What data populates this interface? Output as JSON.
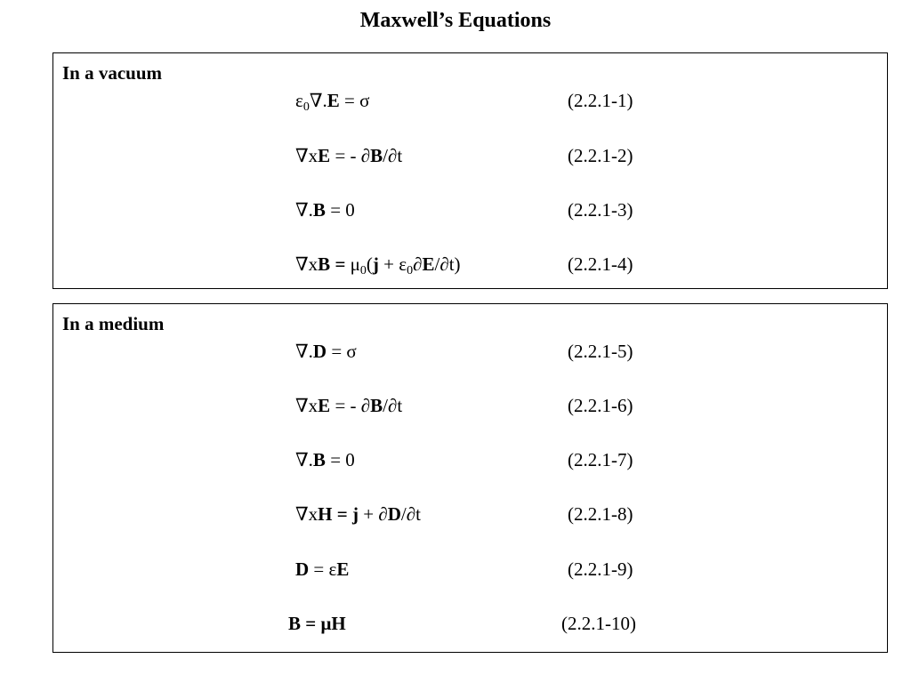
{
  "title": "Maxwell’s Equations",
  "sections": [
    {
      "heading": "In a vacuum",
      "equations": [
        {
          "parts": [
            "ε",
            "0",
            "∇.",
            "E",
            " = σ"
          ],
          "number": "(2.2.1-1)"
        },
        {
          "parts": [
            "∇x",
            "E",
            " = - ∂",
            "B",
            "/∂t"
          ],
          "number": "(2.2.1-2)"
        },
        {
          "parts": [
            "∇.",
            "B",
            " = 0"
          ],
          "number": "(2.2.1-3)"
        },
        {
          "parts": [
            "∇x",
            "B",
            " = ",
            "μ",
            "0",
            "(",
            "j",
            " + ",
            "ε",
            "0",
            "∂",
            "E",
            "/∂t)"
          ],
          "number": "(2.2.1-4)"
        }
      ]
    },
    {
      "heading": "In a medium",
      "equations": [
        {
          "parts": [
            "∇.",
            "D",
            " = σ"
          ],
          "number": "(2.2.1-5)"
        },
        {
          "parts": [
            "∇x",
            "E",
            " = - ∂",
            "B",
            "/∂t"
          ],
          "number": "(2.2.1-6)"
        },
        {
          "parts": [
            "∇.",
            "B",
            " = 0"
          ],
          "number": "(2.2.1-7)"
        },
        {
          "parts": [
            "∇x",
            "H",
            " = ",
            "j",
            " + ∂",
            "D",
            "/∂t"
          ],
          "number": "(2.2.1-8)"
        },
        {
          "parts": [
            "D",
            " = ε",
            "E"
          ],
          "number": "(2.2.1-9)"
        },
        {
          "parts": [
            "B",
            " = μ",
            "H"
          ],
          "number": "(2.2.1-10)"
        }
      ]
    }
  ]
}
